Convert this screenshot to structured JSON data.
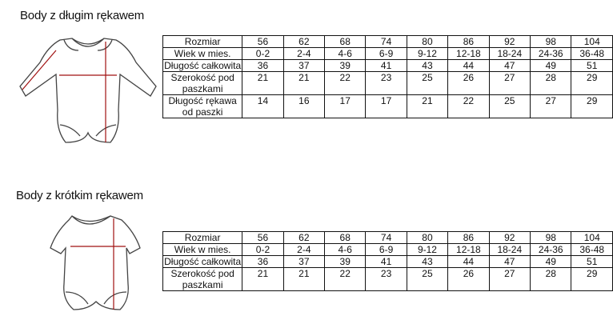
{
  "sections": [
    {
      "title": "Body z długim rękawem",
      "illustration": "long-sleeve-bodysuit",
      "rows": [
        {
          "label": "Rozmiar",
          "values": [
            "56",
            "62",
            "68",
            "74",
            "80",
            "86",
            "92",
            "98",
            "104"
          ]
        },
        {
          "label": "Wiek w mies.",
          "values": [
            "0-2",
            "2-4",
            "4-6",
            "6-9",
            "9-12",
            "12-18",
            "18-24",
            "24-36",
            "36-48"
          ]
        },
        {
          "label": "Długość całkowita",
          "values": [
            "36",
            "37",
            "39",
            "41",
            "43",
            "44",
            "47",
            "49",
            "51"
          ]
        },
        {
          "label": "Szerokość pod paszkami",
          "values": [
            "21",
            "21",
            "22",
            "23",
            "25",
            "26",
            "27",
            "28",
            "29"
          ]
        },
        {
          "label": "Długość rękawa od paszki",
          "values": [
            "14",
            "16",
            "17",
            "17",
            "21",
            "22",
            "25",
            "27",
            "29"
          ]
        }
      ]
    },
    {
      "title": "Body z krótkim rękawem",
      "illustration": "short-sleeve-bodysuit",
      "rows": [
        {
          "label": "Rozmiar",
          "values": [
            "56",
            "62",
            "68",
            "74",
            "80",
            "86",
            "92",
            "98",
            "104"
          ]
        },
        {
          "label": "Wiek w mies.",
          "values": [
            "0-2",
            "2-4",
            "4-6",
            "6-9",
            "9-12",
            "12-18",
            "18-24",
            "24-36",
            "36-48"
          ]
        },
        {
          "label": "Długość całkowita",
          "values": [
            "36",
            "37",
            "39",
            "41",
            "43",
            "44",
            "47",
            "49",
            "51"
          ]
        },
        {
          "label": "Szerokość pod paszkami",
          "values": [
            "21",
            "21",
            "22",
            "23",
            "25",
            "26",
            "27",
            "28",
            "29"
          ]
        }
      ]
    }
  ],
  "colors": {
    "measure_line": "#a01010",
    "outline": "#444444"
  }
}
